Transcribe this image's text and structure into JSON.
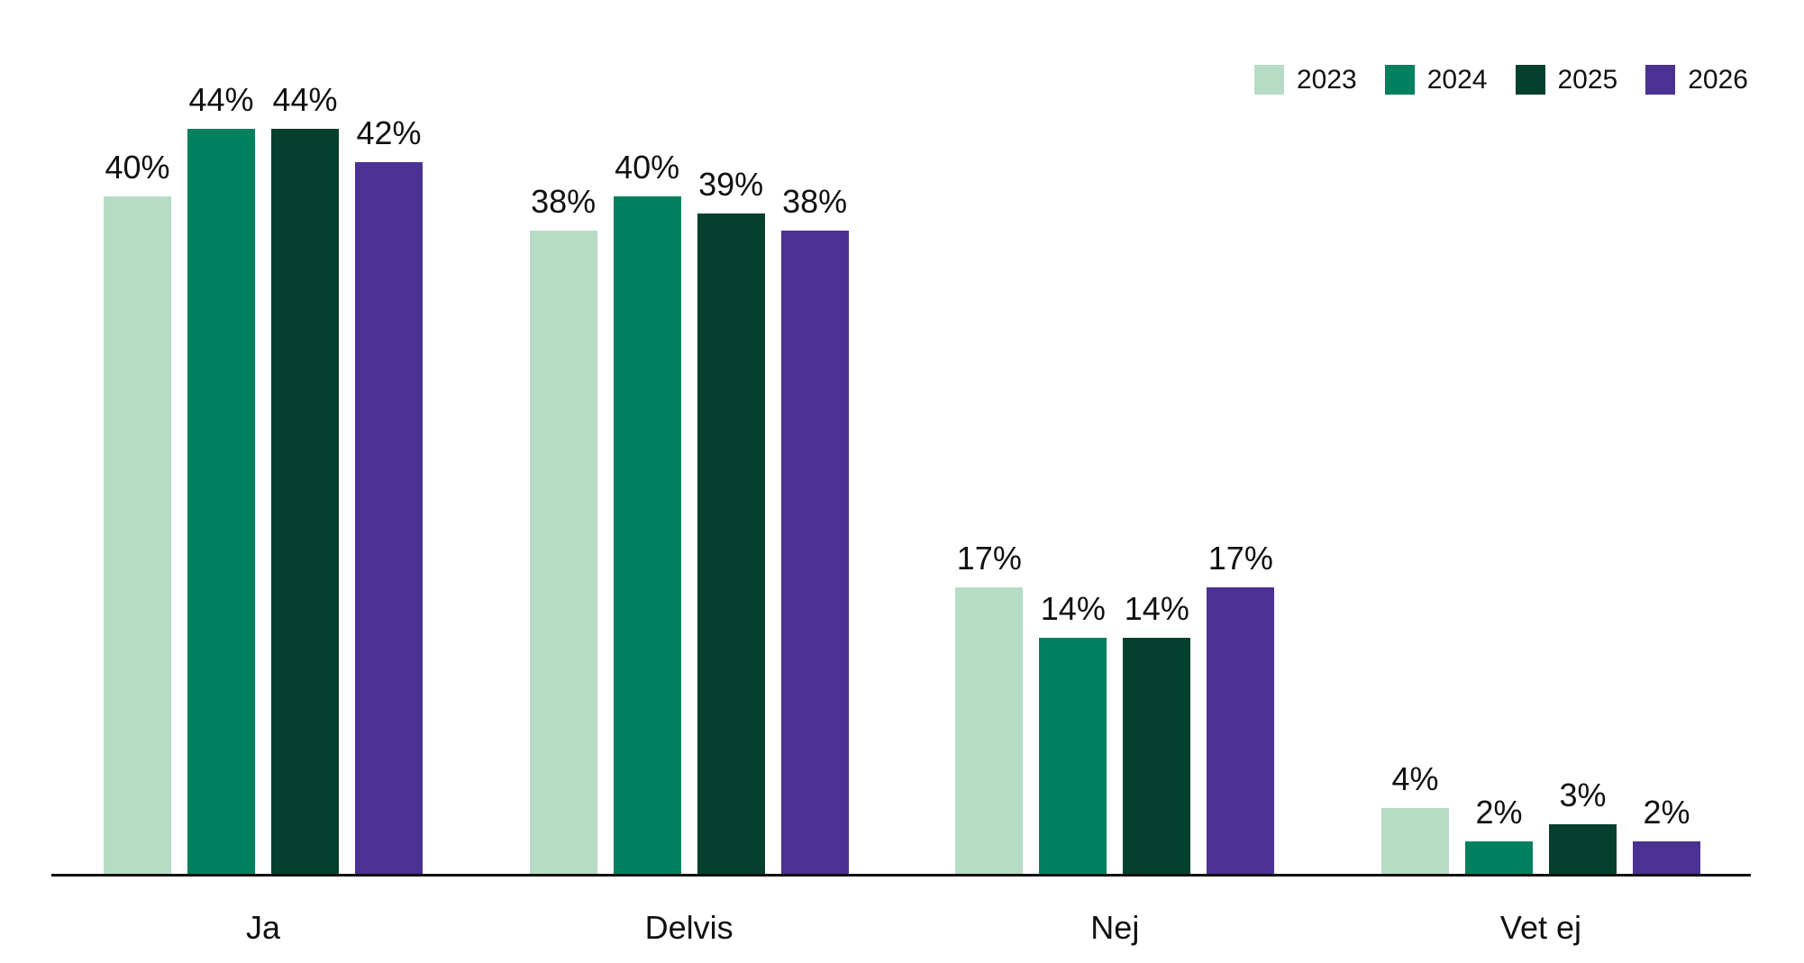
{
  "chart_data": {
    "type": "bar",
    "title": "",
    "xlabel": "",
    "ylabel": "",
    "categories": [
      "Ja",
      "Delvis",
      "Nej",
      "Vet ej"
    ],
    "series": [
      {
        "name": "2023",
        "color": "#b6dcc6",
        "values": [
          40,
          38,
          17,
          4
        ]
      },
      {
        "name": "2024",
        "color": "#00805f",
        "values": [
          44,
          40,
          14,
          2
        ]
      },
      {
        "name": "2025",
        "color": "#05402f",
        "values": [
          44,
          39,
          14,
          3
        ]
      },
      {
        "name": "2026",
        "color": "#4a3193",
        "values": [
          42,
          38,
          17,
          2
        ]
      }
    ],
    "value_suffix": "%",
    "data_labels": true,
    "ylim": [
      0,
      47
    ],
    "grid": false,
    "legend_position": "top-right"
  },
  "colors": {
    "text": "#111111",
    "axis": "#111111",
    "background": "#ffffff"
  }
}
